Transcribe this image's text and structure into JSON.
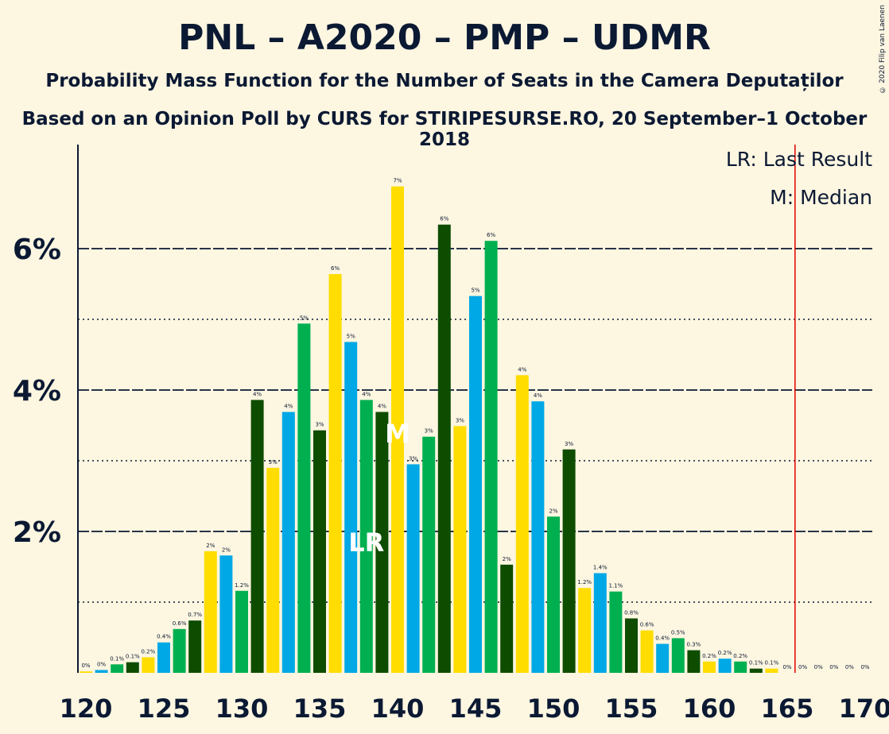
{
  "header": {
    "title": "PNL – A2020 – PMP – UDMR",
    "subtitle": "Probability Mass Function for the Number of Seats in the Camera Deputaților",
    "source": "Based on an Opinion Poll by CURS for STIRIPESURSE.RO, 20 September–1 October 2018",
    "copyright": "© 2020 Filip van Laenen"
  },
  "legend": {
    "lr": "LR: Last Result",
    "median": "M: Median"
  },
  "colors": {
    "background": "#fdf6e1",
    "bar_cycle": [
      "#ffdd00",
      "#00a8e6",
      "#00b050",
      "#0e4d00"
    ],
    "last_result_line": "#e00000",
    "text": "#0b1933"
  },
  "chart_data": {
    "type": "bar",
    "x": [
      120,
      121,
      122,
      123,
      124,
      125,
      126,
      127,
      128,
      129,
      130,
      131,
      132,
      133,
      134,
      135,
      136,
      137,
      138,
      139,
      140,
      141,
      142,
      143,
      144,
      145,
      146,
      147,
      148,
      149,
      150,
      151,
      152,
      153,
      154,
      155,
      156,
      157,
      158,
      159,
      160,
      161,
      162,
      163,
      164,
      165,
      166,
      167,
      168,
      169,
      170
    ],
    "values": [
      0.02,
      0.04,
      0.12,
      0.15,
      0.22,
      0.43,
      0.62,
      0.74,
      1.72,
      1.66,
      1.16,
      3.86,
      2.9,
      3.69,
      4.94,
      3.43,
      5.64,
      4.68,
      3.86,
      3.69,
      6.88,
      2.95,
      3.34,
      6.34,
      3.49,
      5.33,
      6.11,
      1.53,
      4.21,
      3.84,
      2.21,
      3.16,
      1.2,
      1.41,
      1.15,
      0.77,
      0.6,
      0.41,
      0.49,
      0.32,
      0.16,
      0.2,
      0.16,
      0.06,
      0.06,
      0.0,
      0.0,
      0.0,
      0.0,
      0.0,
      0.0
    ],
    "labels": [
      "0%",
      "0%",
      "0.1%",
      "0.1%",
      "0.2%",
      "0.4%",
      "0.6%",
      "0.7%",
      "2%",
      "2%",
      "1.2%",
      "4%",
      "3%",
      "4%",
      "5%",
      "3%",
      "6%",
      "5%",
      "4%",
      "4%",
      "7%",
      "3%",
      "3%",
      "6%",
      "3%",
      "5%",
      "6%",
      "2%",
      "4%",
      "4%",
      "2%",
      "3%",
      "1.2%",
      "1.4%",
      "1.1%",
      "0.8%",
      "0.6%",
      "0.4%",
      "0.5%",
      "0.3%",
      "0.2%",
      "0.2%",
      "0.2%",
      "0.1%",
      "0.1%",
      "0%",
      "0%",
      "0%",
      "0%",
      "0%",
      "0%"
    ],
    "x_ticks": [
      "120",
      "125",
      "130",
      "135",
      "140",
      "145",
      "150",
      "155",
      "160",
      "165",
      "170"
    ],
    "y_ticks": [
      "2%",
      "4%",
      "6%"
    ],
    "ylim": [
      0,
      7.5
    ],
    "major_grid": [
      2,
      4,
      6
    ],
    "minor_grid": [
      1,
      3,
      5
    ],
    "last_result": 138,
    "median": 140,
    "majority_threshold": 165.5,
    "lr_marker": "LR",
    "median_marker": "M"
  }
}
